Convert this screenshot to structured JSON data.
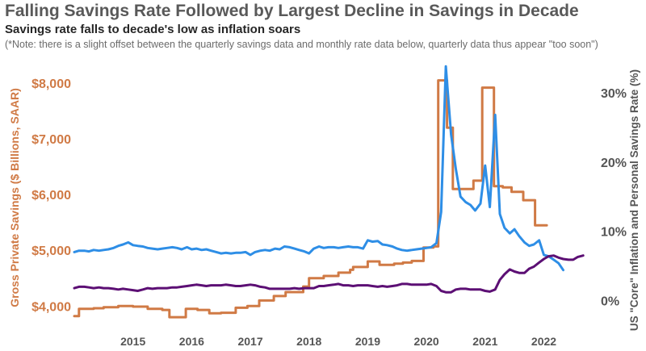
{
  "header": {
    "title": "Falling Savings Rate Followed by Largest Decline in Savings in Decade",
    "subtitle": "Savings rate falls to decade's low as inflation soars",
    "note": "(*Note: there is a slight offset between the quarterly savings data and monthly rate data below, quarterly data thus appear \"too soon\")"
  },
  "chart_data": {
    "type": "line",
    "title": "Falling Savings Rate Followed by Largest Decline in Savings in Decade",
    "subtitle": "Savings rate falls to decade's low as inflation soars",
    "xlabel": "",
    "ylabel_left": "Gross Private Savings ($ Billions, SAAR)",
    "ylabel_right": "US \"Core\" Inflation and Personal Savings Rate (%)",
    "x_ticks": [
      2015,
      2016,
      2017,
      2018,
      2019,
      2020,
      2021,
      2022
    ],
    "x_range": [
      2014.0,
      2022.75
    ],
    "y_left_ticks": [
      {
        "value": 4000,
        "label": "$4,000"
      },
      {
        "value": 5000,
        "label": "$5,000"
      },
      {
        "value": 6000,
        "label": "$6,000"
      },
      {
        "value": 7000,
        "label": "$7,000"
      },
      {
        "value": 8000,
        "label": "$8,000"
      }
    ],
    "y_right_ticks": [
      {
        "value": 0,
        "label": "0%"
      },
      {
        "value": 10,
        "label": "10%"
      },
      {
        "value": 20,
        "label": "20%"
      },
      {
        "value": 30,
        "label": "30%"
      }
    ],
    "y_left_range": [
      3700,
      8450
    ],
    "y_right_range": [
      -3.2,
      35
    ],
    "grid": false,
    "legend": "none",
    "series": [
      {
        "axis": "left",
        "color": "#d07a45",
        "step": true,
        "points": [
          [
            2014.0,
            3820
          ],
          [
            2014.08,
            3950
          ],
          [
            2014.33,
            3960
          ],
          [
            2014.5,
            3980
          ],
          [
            2014.75,
            4000
          ],
          [
            2015.0,
            3990
          ],
          [
            2015.25,
            3950
          ],
          [
            2015.5,
            3930
          ],
          [
            2015.62,
            3800
          ],
          [
            2015.9,
            3950
          ],
          [
            2016.1,
            3930
          ],
          [
            2016.3,
            3870
          ],
          [
            2016.5,
            3880
          ],
          [
            2016.75,
            3970
          ],
          [
            2016.95,
            4000
          ],
          [
            2017.15,
            4100
          ],
          [
            2017.4,
            4180
          ],
          [
            2017.6,
            4250
          ],
          [
            2017.9,
            4350
          ],
          [
            2018.0,
            4500
          ],
          [
            2018.25,
            4540
          ],
          [
            2018.5,
            4600
          ],
          [
            2018.7,
            4650
          ],
          [
            2018.75,
            4700
          ],
          [
            2019.0,
            4800
          ],
          [
            2019.2,
            4740
          ],
          [
            2019.45,
            4760
          ],
          [
            2019.6,
            4780
          ],
          [
            2019.75,
            4810
          ],
          [
            2019.95,
            5050
          ],
          [
            2020.12,
            5070
          ],
          [
            2020.2,
            8050
          ],
          [
            2020.35,
            7200
          ],
          [
            2020.45,
            6100
          ],
          [
            2020.65,
            6100
          ],
          [
            2020.8,
            6250
          ],
          [
            2020.95,
            7920
          ],
          [
            2021.15,
            6150
          ],
          [
            2021.3,
            6130
          ],
          [
            2021.45,
            6050
          ],
          [
            2021.65,
            5900
          ],
          [
            2021.85,
            5450
          ],
          [
            2022.05,
            5450
          ]
        ]
      },
      {
        "axis": "right",
        "color": "#2e8ee6",
        "step": false,
        "points": [
          [
            2014.0,
            7.0
          ],
          [
            2014.08,
            7.2
          ],
          [
            2014.17,
            7.2
          ],
          [
            2014.25,
            7.1
          ],
          [
            2014.33,
            7.3
          ],
          [
            2014.42,
            7.2
          ],
          [
            2014.5,
            7.3
          ],
          [
            2014.58,
            7.4
          ],
          [
            2014.67,
            7.6
          ],
          [
            2014.75,
            7.9
          ],
          [
            2014.83,
            8.1
          ],
          [
            2014.92,
            8.4
          ],
          [
            2015.0,
            8.0
          ],
          [
            2015.08,
            7.9
          ],
          [
            2015.17,
            7.8
          ],
          [
            2015.25,
            7.6
          ],
          [
            2015.33,
            7.5
          ],
          [
            2015.42,
            7.4
          ],
          [
            2015.5,
            7.5
          ],
          [
            2015.58,
            7.6
          ],
          [
            2015.67,
            7.7
          ],
          [
            2015.75,
            7.6
          ],
          [
            2015.83,
            7.4
          ],
          [
            2015.92,
            7.7
          ],
          [
            2016.0,
            7.4
          ],
          [
            2016.08,
            7.5
          ],
          [
            2016.17,
            7.3
          ],
          [
            2016.25,
            7.4
          ],
          [
            2016.33,
            7.2
          ],
          [
            2016.42,
            7.0
          ],
          [
            2016.5,
            6.8
          ],
          [
            2016.58,
            6.9
          ],
          [
            2016.67,
            6.8
          ],
          [
            2016.75,
            6.9
          ],
          [
            2016.83,
            6.9
          ],
          [
            2016.92,
            7.0
          ],
          [
            2017.0,
            6.6
          ],
          [
            2017.08,
            7.0
          ],
          [
            2017.17,
            7.2
          ],
          [
            2017.25,
            7.3
          ],
          [
            2017.33,
            7.2
          ],
          [
            2017.42,
            7.5
          ],
          [
            2017.5,
            7.4
          ],
          [
            2017.58,
            7.8
          ],
          [
            2017.67,
            7.7
          ],
          [
            2017.75,
            7.5
          ],
          [
            2017.83,
            7.3
          ],
          [
            2017.92,
            7.1
          ],
          [
            2018.0,
            6.8
          ],
          [
            2018.08,
            7.5
          ],
          [
            2018.17,
            7.8
          ],
          [
            2018.25,
            7.6
          ],
          [
            2018.33,
            7.7
          ],
          [
            2018.42,
            7.7
          ],
          [
            2018.5,
            7.6
          ],
          [
            2018.58,
            7.7
          ],
          [
            2018.67,
            7.8
          ],
          [
            2018.75,
            7.7
          ],
          [
            2018.83,
            7.7
          ],
          [
            2018.92,
            7.5
          ],
          [
            2019.0,
            8.7
          ],
          [
            2019.08,
            8.5
          ],
          [
            2019.17,
            8.6
          ],
          [
            2019.25,
            8.1
          ],
          [
            2019.33,
            8.0
          ],
          [
            2019.42,
            7.8
          ],
          [
            2019.5,
            7.5
          ],
          [
            2019.58,
            7.3
          ],
          [
            2019.67,
            7.2
          ],
          [
            2019.75,
            7.3
          ],
          [
            2019.83,
            7.4
          ],
          [
            2019.92,
            7.5
          ],
          [
            2020.0,
            7.6
          ],
          [
            2020.08,
            7.7
          ],
          [
            2020.17,
            8.3
          ],
          [
            2020.25,
            12.8
          ],
          [
            2020.33,
            33.8
          ],
          [
            2020.42,
            24.0
          ],
          [
            2020.5,
            19.0
          ],
          [
            2020.58,
            15.0
          ],
          [
            2020.67,
            14.2
          ],
          [
            2020.75,
            13.8
          ],
          [
            2020.83,
            13.0
          ],
          [
            2020.92,
            14.0
          ],
          [
            2021.0,
            19.5
          ],
          [
            2021.08,
            13.5
          ],
          [
            2021.17,
            26.8
          ],
          [
            2021.25,
            12.5
          ],
          [
            2021.33,
            10.5
          ],
          [
            2021.42,
            9.7
          ],
          [
            2021.5,
            10.3
          ],
          [
            2021.58,
            9.3
          ],
          [
            2021.67,
            8.4
          ],
          [
            2021.75,
            7.9
          ],
          [
            2021.83,
            8.1
          ],
          [
            2021.92,
            8.7
          ],
          [
            2022.0,
            6.6
          ],
          [
            2022.08,
            6.4
          ],
          [
            2022.17,
            5.9
          ],
          [
            2022.25,
            5.4
          ],
          [
            2022.33,
            4.4
          ]
        ]
      },
      {
        "axis": "right",
        "color": "#5c0f74",
        "step": false,
        "points": [
          [
            2014.0,
            1.8
          ],
          [
            2014.08,
            2.0
          ],
          [
            2014.17,
            2.0
          ],
          [
            2014.25,
            1.9
          ],
          [
            2014.33,
            1.8
          ],
          [
            2014.42,
            1.9
          ],
          [
            2014.5,
            1.8
          ],
          [
            2014.58,
            1.8
          ],
          [
            2014.67,
            1.7
          ],
          [
            2014.75,
            1.6
          ],
          [
            2014.83,
            1.7
          ],
          [
            2014.92,
            1.6
          ],
          [
            2015.0,
            1.5
          ],
          [
            2015.08,
            1.4
          ],
          [
            2015.17,
            1.6
          ],
          [
            2015.25,
            1.8
          ],
          [
            2015.33,
            1.7
          ],
          [
            2015.42,
            1.8
          ],
          [
            2015.5,
            1.8
          ],
          [
            2015.58,
            1.8
          ],
          [
            2015.67,
            1.9
          ],
          [
            2015.75,
            1.9
          ],
          [
            2015.83,
            2.0
          ],
          [
            2015.92,
            2.1
          ],
          [
            2016.0,
            2.2
          ],
          [
            2016.08,
            2.3
          ],
          [
            2016.17,
            2.2
          ],
          [
            2016.25,
            2.1
          ],
          [
            2016.33,
            2.2
          ],
          [
            2016.42,
            2.2
          ],
          [
            2016.5,
            2.2
          ],
          [
            2016.58,
            2.3
          ],
          [
            2016.67,
            2.2
          ],
          [
            2016.75,
            2.1
          ],
          [
            2016.83,
            2.1
          ],
          [
            2016.92,
            2.2
          ],
          [
            2017.0,
            2.3
          ],
          [
            2017.08,
            2.2
          ],
          [
            2017.17,
            2.0
          ],
          [
            2017.25,
            1.9
          ],
          [
            2017.33,
            1.7
          ],
          [
            2017.42,
            1.7
          ],
          [
            2017.5,
            1.7
          ],
          [
            2017.58,
            1.7
          ],
          [
            2017.67,
            1.7
          ],
          [
            2017.75,
            1.8
          ],
          [
            2017.83,
            1.7
          ],
          [
            2017.92,
            1.8
          ],
          [
            2018.0,
            1.8
          ],
          [
            2018.08,
            1.8
          ],
          [
            2018.17,
            2.1
          ],
          [
            2018.25,
            2.1
          ],
          [
            2018.33,
            2.2
          ],
          [
            2018.42,
            2.3
          ],
          [
            2018.5,
            2.4
          ],
          [
            2018.58,
            2.2
          ],
          [
            2018.67,
            2.2
          ],
          [
            2018.75,
            2.1
          ],
          [
            2018.83,
            2.2
          ],
          [
            2018.92,
            2.2
          ],
          [
            2019.0,
            2.2
          ],
          [
            2019.08,
            2.1
          ],
          [
            2019.17,
            2.0
          ],
          [
            2019.25,
            2.1
          ],
          [
            2019.33,
            2.0
          ],
          [
            2019.42,
            2.1
          ],
          [
            2019.5,
            2.2
          ],
          [
            2019.58,
            2.4
          ],
          [
            2019.67,
            2.4
          ],
          [
            2019.75,
            2.3
          ],
          [
            2019.83,
            2.3
          ],
          [
            2019.92,
            2.3
          ],
          [
            2020.0,
            2.3
          ],
          [
            2020.08,
            2.4
          ],
          [
            2020.17,
            2.1
          ],
          [
            2020.25,
            1.4
          ],
          [
            2020.33,
            1.2
          ],
          [
            2020.42,
            1.2
          ],
          [
            2020.5,
            1.6
          ],
          [
            2020.58,
            1.7
          ],
          [
            2020.67,
            1.7
          ],
          [
            2020.75,
            1.6
          ],
          [
            2020.83,
            1.6
          ],
          [
            2020.92,
            1.6
          ],
          [
            2021.0,
            1.4
          ],
          [
            2021.08,
            1.3
          ],
          [
            2021.17,
            1.6
          ],
          [
            2021.25,
            3.0
          ],
          [
            2021.33,
            3.8
          ],
          [
            2021.42,
            4.5
          ],
          [
            2021.5,
            4.2
          ],
          [
            2021.58,
            4.0
          ],
          [
            2021.67,
            4.0
          ],
          [
            2021.75,
            4.6
          ],
          [
            2021.83,
            4.9
          ],
          [
            2021.92,
            5.5
          ],
          [
            2022.0,
            6.0
          ],
          [
            2022.08,
            6.4
          ],
          [
            2022.17,
            6.5
          ],
          [
            2022.25,
            6.2
          ],
          [
            2022.33,
            6.0
          ],
          [
            2022.42,
            5.9
          ],
          [
            2022.5,
            5.9
          ],
          [
            2022.58,
            6.3
          ],
          [
            2022.67,
            6.5
          ]
        ]
      }
    ]
  }
}
